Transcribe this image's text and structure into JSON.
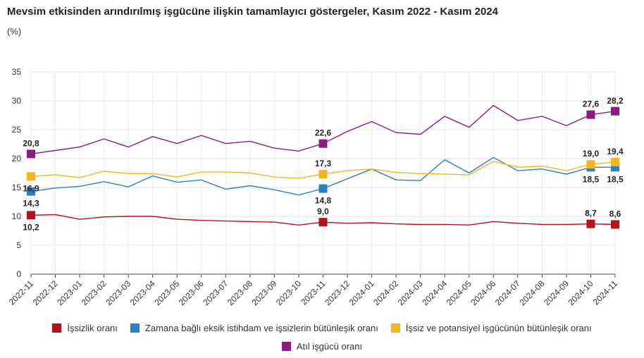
{
  "title": "Mevsim etkisinden arındırılmış işgücüne ilişkin tamamlayıcı göstergeler, Kasım 2022 - Kasım 2024",
  "subtitle": "(%)",
  "chart_data": {
    "type": "line",
    "categories": [
      "2022-11",
      "2022-12",
      "2023-01",
      "2023-02",
      "2023-03",
      "2023-04",
      "2023-05",
      "2023-06",
      "2023-07",
      "2023-08",
      "2023-09",
      "2023-10",
      "2023-11",
      "2023-12",
      "2024-01",
      "2024-02",
      "2024-03",
      "2024-04",
      "2024-05",
      "2024-06",
      "2024-07",
      "2024-08",
      "2024-09",
      "2024-10",
      "2024-11"
    ],
    "ylim": [
      0,
      35
    ],
    "yticks": [
      0,
      5,
      10,
      15,
      20,
      25,
      30,
      35
    ],
    "grid": true,
    "legend_position": "bottom",
    "series": [
      {
        "name": "İşsizlik oranı",
        "color": "#b5121b",
        "values": [
          10.2,
          10.3,
          9.5,
          9.9,
          10.0,
          10.0,
          9.5,
          9.3,
          9.2,
          9.1,
          9.0,
          8.5,
          9.0,
          8.8,
          8.9,
          8.7,
          8.6,
          8.6,
          8.5,
          9.1,
          8.8,
          8.6,
          8.6,
          8.7,
          8.6
        ],
        "markers": [
          0,
          12,
          23,
          24
        ],
        "labels": [
          {
            "index": 0,
            "text": "10,2",
            "pos": "below"
          },
          {
            "index": 12,
            "text": "9,0",
            "pos": "above"
          },
          {
            "index": 23,
            "text": "8,7",
            "pos": "above"
          },
          {
            "index": 24,
            "text": "8,6",
            "pos": "above"
          }
        ]
      },
      {
        "name": "Zamana bağlı eksik istihdam ve işsizlerin bütünleşik oranı",
        "color": "#2a80c8",
        "values": [
          14.3,
          14.9,
          15.2,
          16.0,
          15.1,
          17.0,
          15.9,
          16.3,
          14.7,
          15.3,
          14.6,
          13.7,
          14.8,
          16.5,
          18.2,
          16.3,
          16.2,
          19.8,
          17.5,
          20.2,
          17.9,
          18.2,
          17.3,
          18.5,
          18.5
        ],
        "markers": [
          0,
          12,
          23,
          24
        ],
        "labels": [
          {
            "index": 0,
            "text": "14,3",
            "pos": "below"
          },
          {
            "index": 12,
            "text": "14,8",
            "pos": "below"
          },
          {
            "index": 23,
            "text": "18,5",
            "pos": "below"
          },
          {
            "index": 24,
            "text": "18,5",
            "pos": "below"
          }
        ]
      },
      {
        "name": "İşsiz ve potansiyel işgücünün bütünleşik oranı",
        "color": "#f6b51e",
        "values": [
          16.9,
          17.2,
          16.7,
          17.8,
          17.4,
          17.4,
          16.8,
          17.7,
          17.7,
          17.5,
          16.8,
          16.6,
          17.3,
          17.9,
          18.2,
          17.6,
          17.4,
          17.3,
          17.2,
          19.5,
          18.5,
          18.7,
          17.9,
          19.0,
          19.4
        ],
        "markers": [
          0,
          12,
          23,
          24
        ],
        "labels": [
          {
            "index": 0,
            "text": "16,9",
            "pos": "below"
          },
          {
            "index": 12,
            "text": "17,3",
            "pos": "above"
          },
          {
            "index": 23,
            "text": "19,0",
            "pos": "above"
          },
          {
            "index": 24,
            "text": "19,4",
            "pos": "above"
          }
        ]
      },
      {
        "name": "Atıl işgücü oranı",
        "color": "#8e1a86",
        "values": [
          20.8,
          21.4,
          22.0,
          23.4,
          22.0,
          23.8,
          22.6,
          24.0,
          22.6,
          23.0,
          21.8,
          21.3,
          22.6,
          24.7,
          26.4,
          24.5,
          24.2,
          27.3,
          25.4,
          29.2,
          26.6,
          27.3,
          25.7,
          27.6,
          28.2
        ],
        "markers": [
          0,
          12,
          23,
          24
        ],
        "labels": [
          {
            "index": 0,
            "text": "20,8",
            "pos": "above"
          },
          {
            "index": 12,
            "text": "22,6",
            "pos": "above"
          },
          {
            "index": 23,
            "text": "27,6",
            "pos": "above"
          },
          {
            "index": 24,
            "text": "28,2",
            "pos": "above"
          }
        ]
      }
    ]
  }
}
